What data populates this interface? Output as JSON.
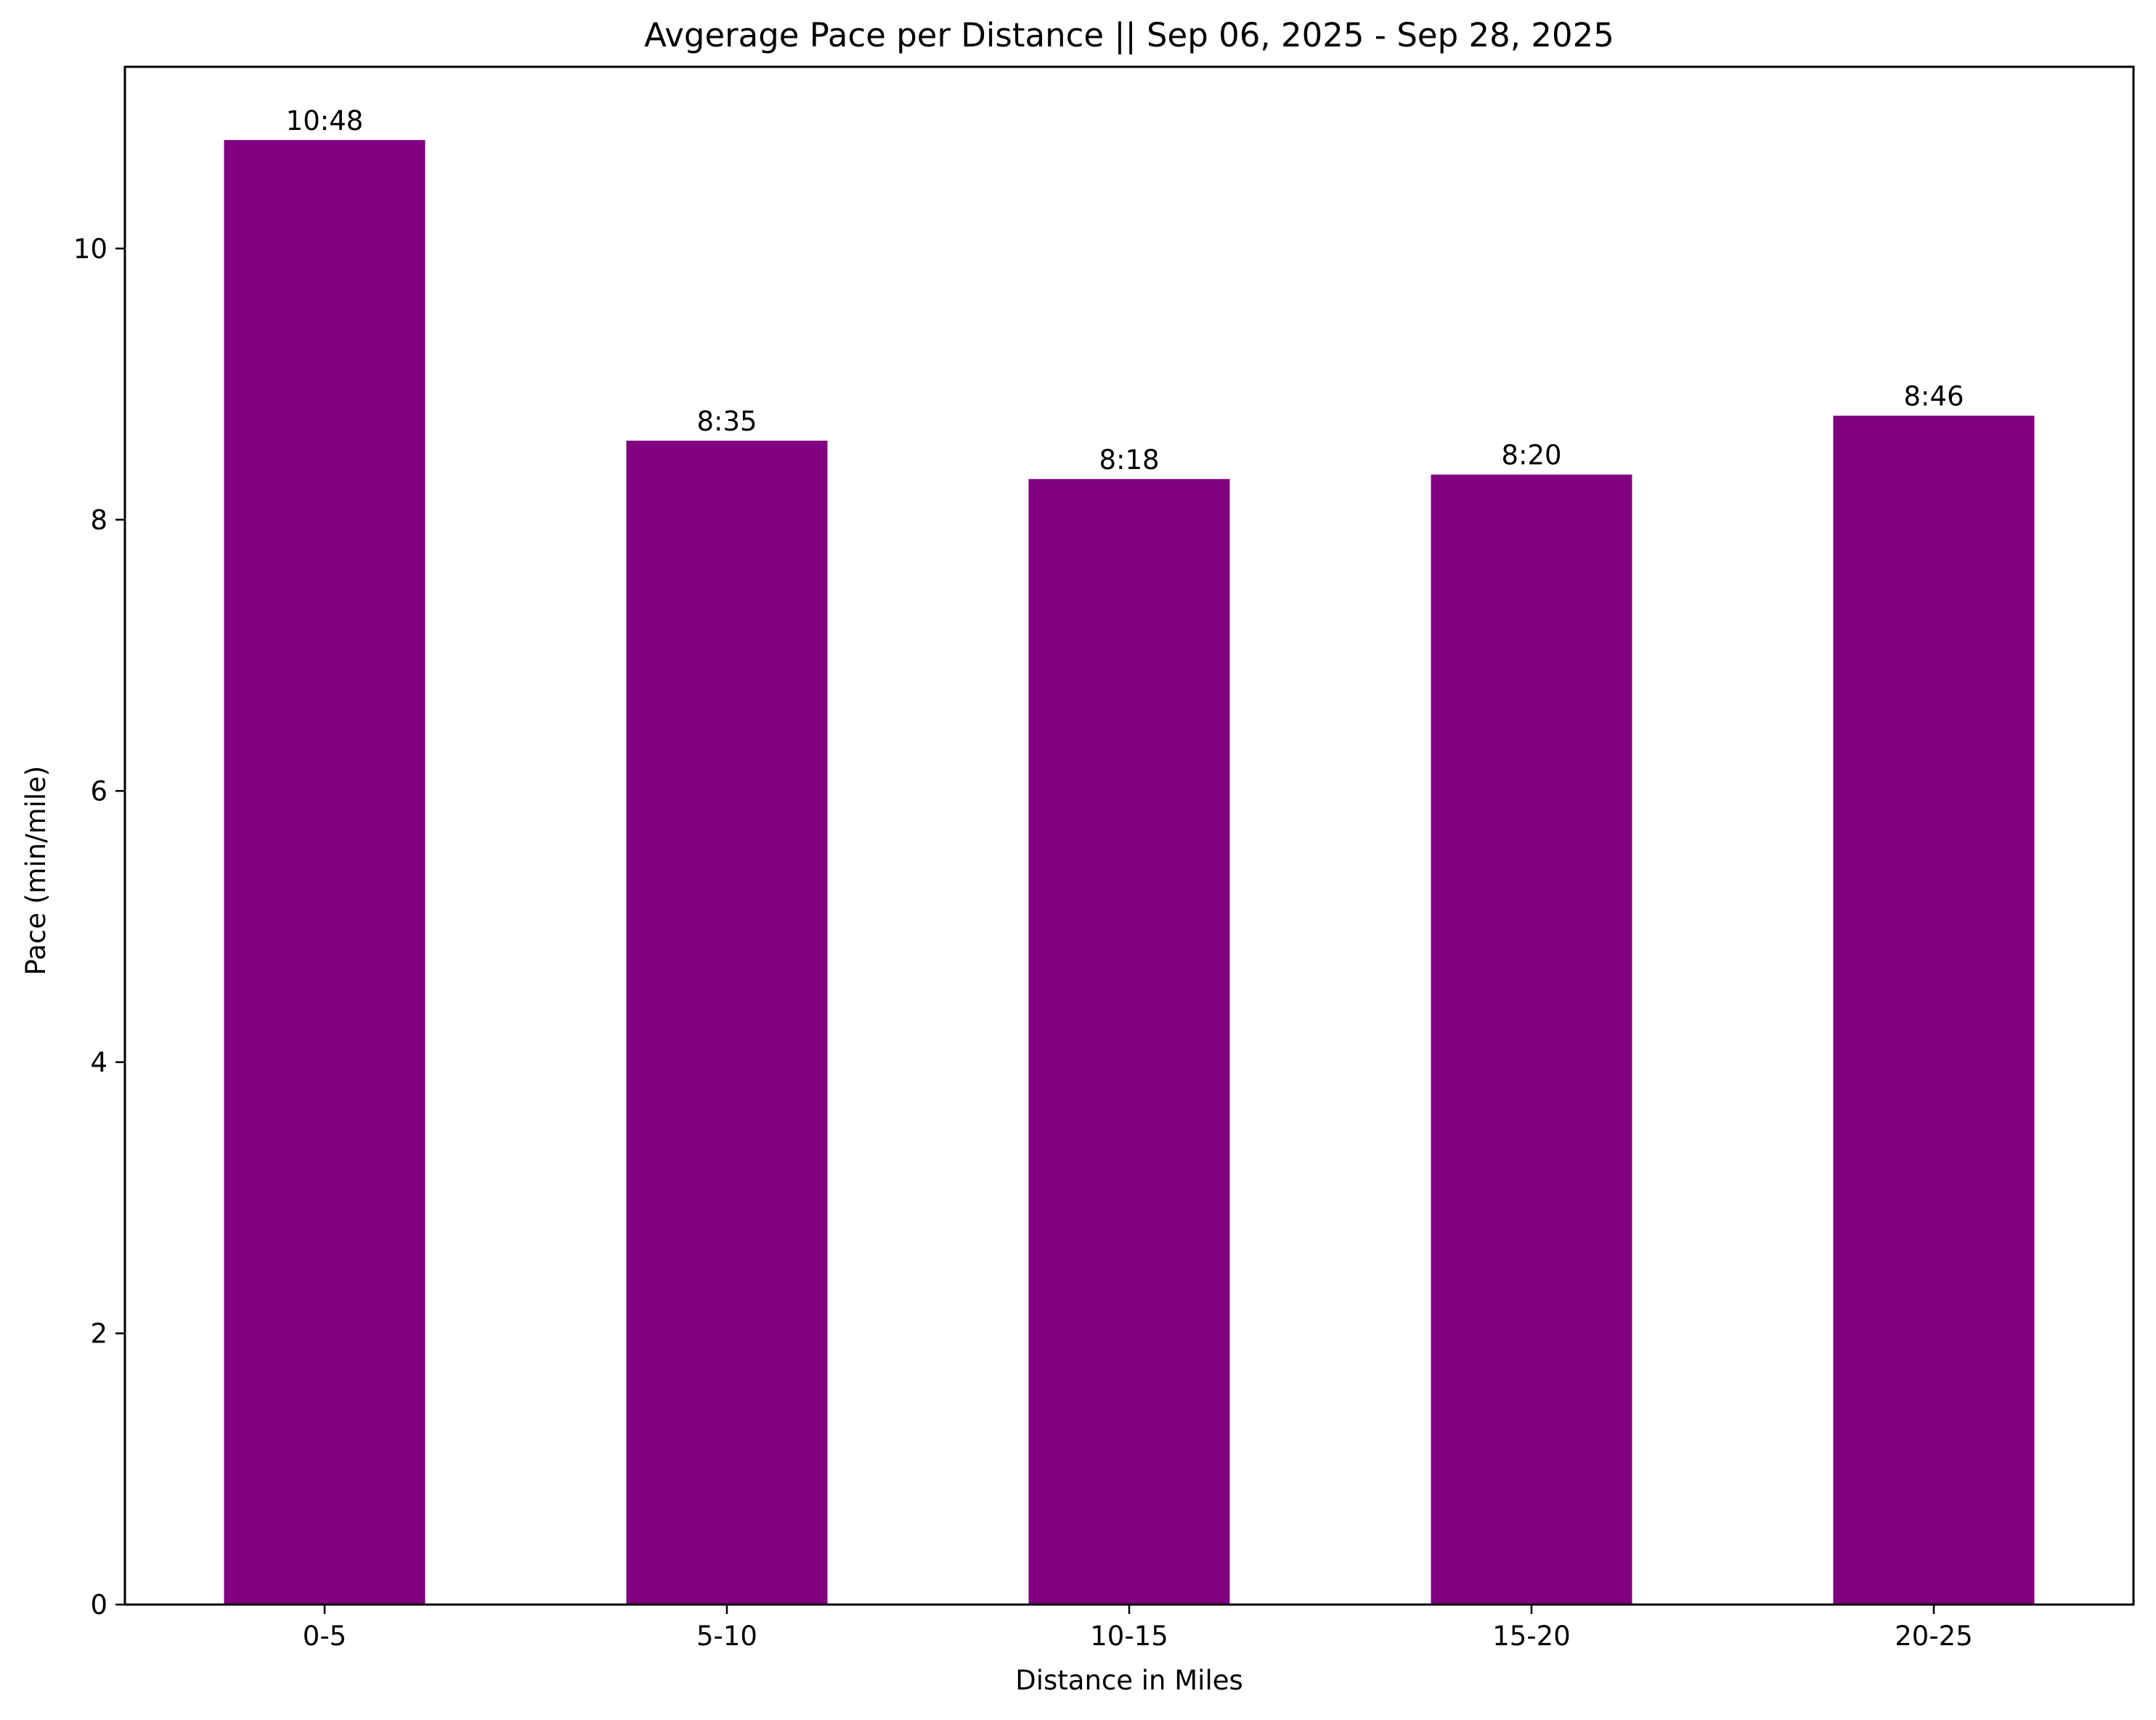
{
  "chart_data": {
    "type": "bar",
    "title": "Avgerage Pace per Distance || Sep 06, 2025 - Sep 28, 2025",
    "xlabel": "Distance in Miles",
    "ylabel": "Pace (min/mile)",
    "categories": [
      "0-5",
      "5-10",
      "10-15",
      "15-20",
      "20-25"
    ],
    "values": [
      10.8,
      8.583,
      8.3,
      8.333,
      8.767
    ],
    "data_labels": [
      "10:48",
      "8:35",
      "8:18",
      "8:20",
      "8:46"
    ],
    "ylim": [
      0,
      11.34
    ],
    "yticks": [
      0,
      2,
      4,
      6,
      8,
      10
    ],
    "ytick_labels": [
      "0",
      "2",
      "4",
      "6",
      "8",
      "10"
    ],
    "bar_color": "#800080",
    "grid": false,
    "legend": "none"
  }
}
